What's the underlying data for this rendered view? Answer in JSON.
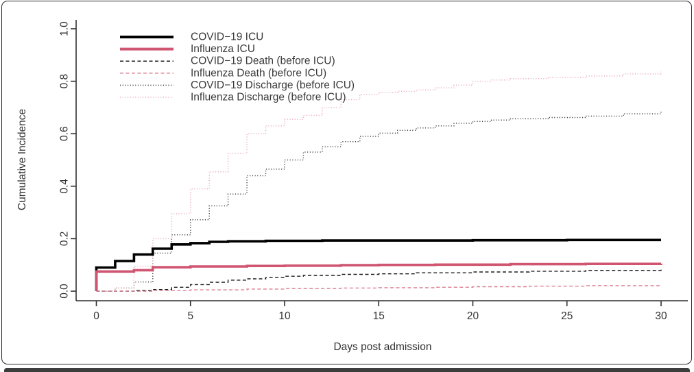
{
  "chart_data": {
    "type": "line",
    "subtype": "step-cumulative-incidence",
    "title": "",
    "xlabel": "Days post admission",
    "ylabel": "Cumulative Incidence",
    "xlim": [
      0,
      30
    ],
    "ylim": [
      0.0,
      1.0
    ],
    "grid": false,
    "legend_position": "top-left",
    "x_ticks": [
      {
        "value": 0,
        "label": "0"
      },
      {
        "value": 5,
        "label": "5"
      },
      {
        "value": 10,
        "label": "10"
      },
      {
        "value": 15,
        "label": "15"
      },
      {
        "value": 20,
        "label": "20"
      },
      {
        "value": 25,
        "label": "25"
      },
      {
        "value": 30,
        "label": "30"
      }
    ],
    "y_ticks": [
      {
        "value": 0.0,
        "label": "0.0"
      },
      {
        "value": 0.2,
        "label": "0.2"
      },
      {
        "value": 0.4,
        "label": "0.4"
      },
      {
        "value": 0.6,
        "label": "0.6"
      },
      {
        "value": 0.8,
        "label": "0.8"
      },
      {
        "value": 1.0,
        "label": "1.0"
      }
    ],
    "series": [
      {
        "name": "COVID−19 ICU",
        "style": "solid",
        "color": "#000000",
        "width": 3.6,
        "points": [
          [
            0,
            0
          ],
          [
            0,
            0.09
          ],
          [
            1,
            0.115
          ],
          [
            2,
            0.14
          ],
          [
            3,
            0.162
          ],
          [
            4,
            0.178
          ],
          [
            5,
            0.183
          ],
          [
            6,
            0.188
          ],
          [
            7,
            0.19
          ],
          [
            9,
            0.192
          ],
          [
            12,
            0.193
          ],
          [
            16,
            0.193
          ],
          [
            20,
            0.194
          ],
          [
            25,
            0.195
          ],
          [
            30,
            0.195
          ]
        ]
      },
      {
        "name": "Influenza ICU",
        "style": "solid",
        "color": "#cf5571",
        "width": 3.6,
        "points": [
          [
            0,
            0
          ],
          [
            0,
            0.075
          ],
          [
            2,
            0.08
          ],
          [
            3,
            0.091
          ],
          [
            5,
            0.094
          ],
          [
            8,
            0.096
          ],
          [
            10,
            0.097
          ],
          [
            13,
            0.099
          ],
          [
            15,
            0.1
          ],
          [
            18,
            0.101
          ],
          [
            22,
            0.103
          ],
          [
            26,
            0.104
          ],
          [
            30,
            0.105
          ]
        ]
      },
      {
        "name": "COVID−19 Death (before ICU)",
        "style": "dashed",
        "color": "#1c1c1c",
        "width": 1.4,
        "points": [
          [
            0,
            0
          ],
          [
            2,
            0.003
          ],
          [
            3,
            0.006
          ],
          [
            4,
            0.015
          ],
          [
            5,
            0.025
          ],
          [
            6,
            0.034
          ],
          [
            7,
            0.042
          ],
          [
            8,
            0.047
          ],
          [
            9,
            0.052
          ],
          [
            10,
            0.057
          ],
          [
            11,
            0.06
          ],
          [
            13,
            0.064
          ],
          [
            15,
            0.066
          ],
          [
            17,
            0.07
          ],
          [
            20,
            0.073
          ],
          [
            23,
            0.076
          ],
          [
            26,
            0.079
          ],
          [
            30,
            0.082
          ]
        ]
      },
      {
        "name": "Influenza Death (before ICU)",
        "style": "dashed",
        "color": "#d97f92",
        "width": 1.4,
        "points": [
          [
            0,
            0
          ],
          [
            3,
            0.003
          ],
          [
            5,
            0.005
          ],
          [
            8,
            0.008
          ],
          [
            10,
            0.01
          ],
          [
            13,
            0.012
          ],
          [
            15,
            0.013
          ],
          [
            18,
            0.015
          ],
          [
            20,
            0.017
          ],
          [
            23,
            0.019
          ],
          [
            26,
            0.021
          ],
          [
            30,
            0.023
          ]
        ]
      },
      {
        "name": "COVID−19 Discharge (before ICU)",
        "style": "dotted",
        "color": "#3a3a3a",
        "width": 1.5,
        "points": [
          [
            0,
            0
          ],
          [
            1,
            0.012
          ],
          [
            2,
            0.035
          ],
          [
            3,
            0.145
          ],
          [
            4,
            0.215
          ],
          [
            5,
            0.272
          ],
          [
            6,
            0.325
          ],
          [
            7,
            0.37
          ],
          [
            8,
            0.44
          ],
          [
            9,
            0.465
          ],
          [
            10,
            0.5
          ],
          [
            11,
            0.53
          ],
          [
            12,
            0.55
          ],
          [
            13,
            0.57
          ],
          [
            14,
            0.59
          ],
          [
            15,
            0.602
          ],
          [
            16,
            0.613
          ],
          [
            17,
            0.622
          ],
          [
            18,
            0.63
          ],
          [
            19,
            0.64
          ],
          [
            20,
            0.647
          ],
          [
            21,
            0.652
          ],
          [
            22,
            0.657
          ],
          [
            24,
            0.662
          ],
          [
            26,
            0.667
          ],
          [
            28,
            0.676
          ],
          [
            30,
            0.685
          ]
        ]
      },
      {
        "name": "Influenza Discharge (before ICU)",
        "style": "dotted",
        "color": "#e9a9b5",
        "width": 1.5,
        "points": [
          [
            0,
            0
          ],
          [
            1,
            0.012
          ],
          [
            2,
            0.095
          ],
          [
            3,
            0.2
          ],
          [
            4,
            0.295
          ],
          [
            5,
            0.39
          ],
          [
            6,
            0.455
          ],
          [
            7,
            0.525
          ],
          [
            8,
            0.6
          ],
          [
            9,
            0.63
          ],
          [
            10,
            0.655
          ],
          [
            11,
            0.67
          ],
          [
            12,
            0.7
          ],
          [
            13,
            0.73
          ],
          [
            14,
            0.75
          ],
          [
            15,
            0.757
          ],
          [
            16,
            0.762
          ],
          [
            17,
            0.767
          ],
          [
            18,
            0.775
          ],
          [
            19,
            0.785
          ],
          [
            20,
            0.8
          ],
          [
            21,
            0.805
          ],
          [
            22,
            0.81
          ],
          [
            24,
            0.815
          ],
          [
            26,
            0.82
          ],
          [
            28,
            0.828
          ],
          [
            30,
            0.836
          ]
        ]
      }
    ]
  },
  "colors": {
    "axis": "#2f2f2f",
    "tick_text": "#333333",
    "legend_text": "#3a3a3a",
    "card_border": "#262626",
    "bottom_bar": "#3d3d3d"
  }
}
